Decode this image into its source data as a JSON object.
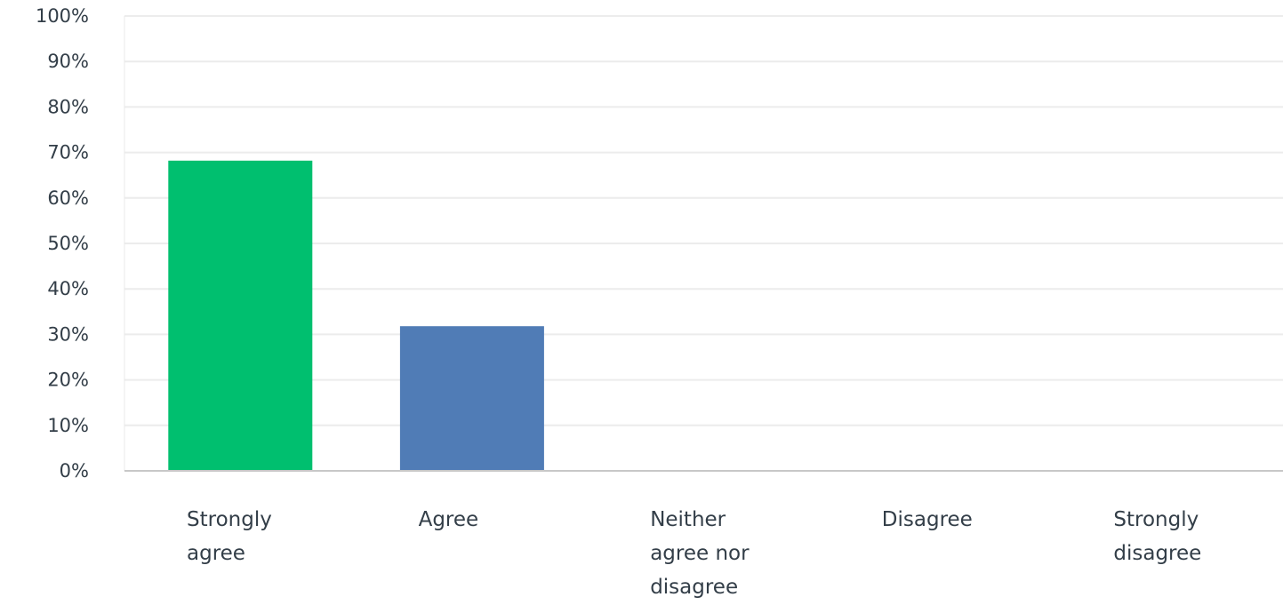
{
  "chart_data": {
    "type": "bar",
    "title": "",
    "xlabel": "",
    "ylabel": "",
    "ylim": [
      0,
      100
    ],
    "y_ticks": [
      "0%",
      "10%",
      "20%",
      "30%",
      "40%",
      "50%",
      "60%",
      "70%",
      "80%",
      "90%",
      "100%"
    ],
    "grid": true,
    "legend": "none",
    "categories": [
      [
        "Strongly",
        "agree"
      ],
      [
        "Agree"
      ],
      [
        "Neither",
        "agree nor",
        "disagree"
      ],
      [
        "Disagree"
      ],
      [
        "Strongly",
        "disagree"
      ]
    ],
    "values": [
      68.2,
      31.8,
      0,
      0,
      0
    ],
    "colors": [
      "#00bf6f",
      "#507cb6",
      "#f9be00",
      "#6bc8cd",
      "#ff8b4f"
    ]
  }
}
